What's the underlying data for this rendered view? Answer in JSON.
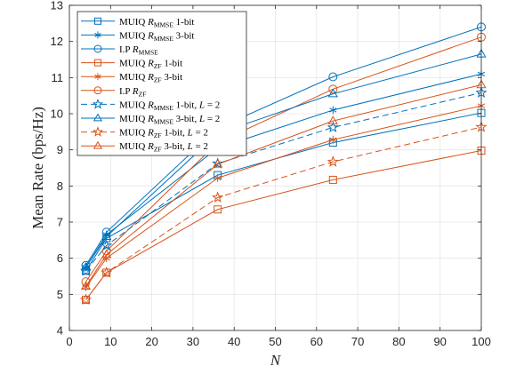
{
  "chart_data": {
    "type": "line",
    "xlabel": "N",
    "ylabel": "Mean Rate (bps/Hz)",
    "xlim": [
      0,
      100
    ],
    "ylim": [
      4,
      13
    ],
    "xticks": [
      "0",
      "10",
      "20",
      "30",
      "40",
      "50",
      "60",
      "70",
      "80",
      "90",
      "100"
    ],
    "yticks": [
      "4",
      "5",
      "6",
      "7",
      "8",
      "9",
      "10",
      "11",
      "12",
      "13"
    ],
    "grid": true,
    "legend_position": "top-left",
    "x": [
      4,
      9,
      36,
      64,
      100
    ],
    "colors": {
      "blue": "#0072BD",
      "orange": "#D95319",
      "grid": "#e6e6e6",
      "axis": "#262626"
    },
    "series": [
      {
        "legend": {
          "pre": "MUIQ ",
          "sym": "R",
          "sub": "MMSE",
          "post": " 1-bit"
        },
        "color": "blue",
        "marker": "square",
        "dash": false,
        "values": [
          5.65,
          6.55,
          8.3,
          9.2,
          10.02
        ]
      },
      {
        "legend": {
          "pre": "MUIQ ",
          "sym": "R",
          "sub": "MMSE",
          "post": " 3-bit"
        },
        "color": "blue",
        "marker": "asterisk",
        "dash": false,
        "values": [
          5.75,
          6.65,
          9.05,
          10.1,
          11.1
        ]
      },
      {
        "legend": {
          "pre": "I.P ",
          "sym": "R",
          "sub": "MMSE",
          "post": ""
        },
        "color": "blue",
        "marker": "circle",
        "dash": false,
        "values": [
          5.8,
          6.72,
          9.6,
          11.02,
          12.4
        ]
      },
      {
        "legend": {
          "pre": "MUIQ ",
          "sym": "R",
          "sub": "ZF",
          "post": " 1-bit"
        },
        "color": "orange",
        "marker": "square",
        "dash": false,
        "values": [
          4.85,
          5.6,
          7.35,
          8.17,
          8.98
        ]
      },
      {
        "legend": {
          "pre": "MUIQ ",
          "sym": "R",
          "sub": "ZF",
          "post": " 3-bit"
        },
        "color": "orange",
        "marker": "asterisk",
        "dash": false,
        "values": [
          5.2,
          6.0,
          8.22,
          9.28,
          10.22
        ]
      },
      {
        "legend": {
          "pre": "I.P ",
          "sym": "R",
          "sub": "ZF",
          "post": ""
        },
        "color": "orange",
        "marker": "circle",
        "dash": false,
        "values": [
          5.35,
          6.2,
          9.2,
          10.68,
          12.12
        ]
      },
      {
        "legend": {
          "pre": "MUIQ ",
          "sym": "R",
          "sub": "MMSE",
          "post": " 1-bit, ",
          "sym2": "L",
          "post2": " = 2"
        },
        "color": "blue",
        "marker": "pentagram",
        "dash": true,
        "values": [
          5.65,
          6.35,
          8.62,
          9.62,
          10.58
        ]
      },
      {
        "legend": {
          "pre": "MUIQ ",
          "sym": "R",
          "sub": "MMSE",
          "post": " 3-bit, ",
          "sym2": "L",
          "post2": " = 2"
        },
        "color": "blue",
        "marker": "triangle",
        "dash": false,
        "values": [
          5.75,
          6.6,
          9.45,
          10.55,
          11.65
        ]
      },
      {
        "legend": {
          "pre": "MUIQ ",
          "sym": "R",
          "sub": "ZF",
          "post": " 1-bit, ",
          "sym2": "L",
          "post2": " = 2"
        },
        "color": "orange",
        "marker": "pentagram",
        "dash": true,
        "values": [
          4.85,
          5.6,
          7.68,
          8.67,
          9.63
        ]
      },
      {
        "legend": {
          "pre": "MUIQ ",
          "sym": "R",
          "sub": "ZF",
          "post": " 3-bit, ",
          "sym2": "L",
          "post2": " = 2"
        },
        "color": "orange",
        "marker": "triangle",
        "dash": false,
        "values": [
          5.22,
          6.1,
          8.6,
          9.8,
          10.8
        ]
      }
    ]
  }
}
